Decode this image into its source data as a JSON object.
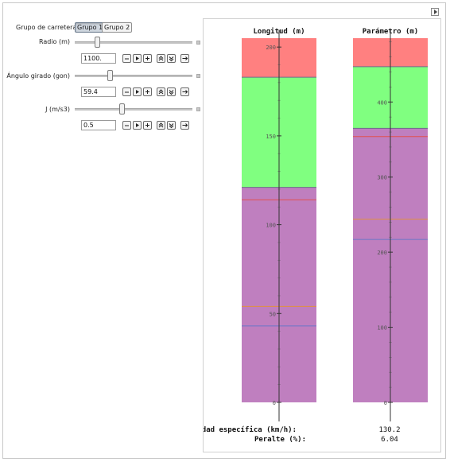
{
  "controls": {
    "group": {
      "label": "Grupo de carretera",
      "options": [
        "Grupo 1",
        "Grupo 2"
      ],
      "selected": "Grupo 1"
    },
    "sliders": [
      {
        "id": "radio",
        "label": "Radio (m)",
        "value": "1100."
      },
      {
        "id": "angulo",
        "label": "Ángulo girado (gon)",
        "value": "59.4"
      },
      {
        "id": "j",
        "label": "J (m/s3)",
        "value": "0.5"
      }
    ]
  },
  "colors": {
    "red_band": "#ff8080",
    "green_band": "#80ff80",
    "purple_band": "#bf7fbf",
    "line_red": "#e05050",
    "line_orange": "#e09040",
    "line_blue": "#6a78c8"
  },
  "chart_data": [
    {
      "type": "bar",
      "title": "Longitud (m)",
      "ylim": [
        0,
        205
      ],
      "yticks": [
        0,
        50,
        100,
        150,
        200
      ],
      "bands": [
        {
          "from": 0,
          "to": 121,
          "color": "purple"
        },
        {
          "from": 121,
          "to": 183,
          "color": "green"
        },
        {
          "from": 183,
          "to": 205,
          "color": "red"
        }
      ],
      "lines": [
        {
          "value": 114,
          "color": "red"
        },
        {
          "value": 54,
          "color": "orange"
        },
        {
          "value": 43,
          "color": "blue"
        }
      ]
    },
    {
      "type": "bar",
      "title": "Parámetro (m)",
      "ylim": [
        0,
        485
      ],
      "yticks": [
        0,
        100,
        200,
        300,
        400
      ],
      "bands": [
        {
          "from": 0,
          "to": 365,
          "color": "purple"
        },
        {
          "from": 365,
          "to": 447,
          "color": "green"
        },
        {
          "from": 447,
          "to": 485,
          "color": "red"
        }
      ],
      "lines": [
        {
          "value": 354,
          "color": "red"
        },
        {
          "value": 244,
          "color": "orange"
        },
        {
          "value": 217,
          "color": "blue"
        }
      ]
    }
  ],
  "results": [
    {
      "label": "Velocidad específica (km/h):",
      "value": "130.2"
    },
    {
      "label": "Peralte (%):",
      "value": "6.04"
    }
  ]
}
